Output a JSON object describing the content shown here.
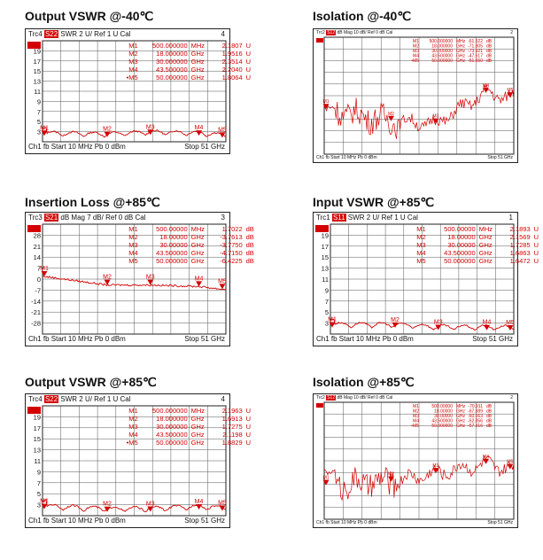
{
  "panels": [
    {
      "title": "Output VSWR @-40℃",
      "header": {
        "trace": "Trc4",
        "param": "S22",
        "rest": "SWR  2 U/  Ref 1 U    Cal",
        "chan": "4"
      },
      "footer": {
        "left": "Ch1  fb  Start  10 MHz     Pb   0 dBm",
        "right": "Stop  51 GHz"
      },
      "markers": [
        {
          "name": "M1",
          "freq": "500.000000",
          "unit": "MHz",
          "val": "2.1807",
          "vu": "U"
        },
        {
          "name": "M2",
          "freq": "18.000000",
          "unit": "GHz",
          "val": "1.9516",
          "vu": "U"
        },
        {
          "name": "M3",
          "freq": "30.000000",
          "unit": "GHz",
          "val": "2.3514",
          "vu": "U"
        },
        {
          "name": "M4",
          "freq": "43.500000",
          "unit": "GHz",
          "val": "2.2040",
          "vu": "U"
        },
        {
          "name": "•M5",
          "freq": "50.000000",
          "unit": "GHz",
          "val": "1.8064",
          "vu": "U"
        }
      ]
    },
    {
      "title": "Isolation @-40℃",
      "header": {
        "trace": "Trc2",
        "param": "S12",
        "rest": "dB Mag  10 dB/  Ref 0 dB     Cal",
        "chan": "2"
      },
      "footer": {
        "left": "Ch1  fb  Start  10 MHz            Pb   0 dBm",
        "right": "Stop  51 GHz"
      },
      "markers": [
        {
          "name": "M1",
          "freq": "500.000000",
          "unit": "MHz",
          "val": "-61.522",
          "vu": "dB"
        },
        {
          "name": "M2",
          "freq": "18.000000",
          "unit": "GHz",
          "val": "-71.805",
          "vu": "dB"
        },
        {
          "name": "M3",
          "freq": "30.000000",
          "unit": "GHz",
          "val": "-73.921",
          "vu": "dB"
        },
        {
          "name": "M4",
          "freq": "43.500000",
          "unit": "GHz",
          "val": "-47.617",
          "vu": "dB"
        },
        {
          "name": "•M5",
          "freq": "50.000000",
          "unit": "GHz",
          "val": "-51.650",
          "vu": "dB"
        }
      ]
    },
    {
      "title": "Insertion Loss @+85℃",
      "header": {
        "trace": "Trc3",
        "param": "S21",
        "rest": "dB Mag   7 dB/  Ref 0 dB     Cal",
        "chan": "3"
      },
      "footer": {
        "left": "Ch1  fb  Start  10 MHz     Pb   0 dBm",
        "right": "Stop  51 GHz"
      },
      "markers": [
        {
          "name": "M1",
          "freq": "500.00000",
          "unit": "MHz",
          "val": "1.7022",
          "vu": "dB"
        },
        {
          "name": "M2",
          "freq": "18.00000",
          "unit": "GHz",
          "val": "-3.7613",
          "vu": "dB"
        },
        {
          "name": "M3",
          "freq": "30.00000",
          "unit": "GHz",
          "val": "-3.7750",
          "vu": "dB"
        },
        {
          "name": "M4",
          "freq": "43.500000",
          "unit": "GHz",
          "val": "-4.7150",
          "vu": "dB"
        },
        {
          "name": "M5",
          "freq": "50.000000",
          "unit": "GHz",
          "val": "-6.4225",
          "vu": "dB"
        }
      ]
    },
    {
      "title": "Input VSWR @+85℃",
      "header": {
        "trace": "Trc1",
        "param": "S11",
        "rest": "SWR  2 U/  Ref 1 U     Cal",
        "chan": "1"
      },
      "footer": {
        "left": "Ch1  fb  Start  10 MHz     Pb   0 dBm",
        "right": "Stop  51 GHz"
      },
      "markers": [
        {
          "name": "M1",
          "freq": "500.00000",
          "unit": "MHz",
          "val": "2.1893",
          "vu": "U"
        },
        {
          "name": "M2",
          "freq": "18.00000",
          "unit": "GHz",
          "val": "2.1569",
          "vu": "U"
        },
        {
          "name": "M3",
          "freq": "30.00000",
          "unit": "GHz",
          "val": "1.7285",
          "vu": "U"
        },
        {
          "name": "M4",
          "freq": "43.500000",
          "unit": "GHz",
          "val": "1.6863",
          "vu": "U"
        },
        {
          "name": "M5",
          "freq": "50.000000",
          "unit": "GHz",
          "val": "1.6472",
          "vu": "U"
        }
      ]
    },
    {
      "title": "Output VSWR @+85℃",
      "header": {
        "trace": "Trc4",
        "param": "S22",
        "rest": "SWR  2 U/  Ref 1 U    Cal",
        "chan": "4"
      },
      "footer": {
        "left": "Ch1  fb  Start  10 MHz     Pb   0 dBm",
        "right": "Stop  51 GHz"
      },
      "markers": [
        {
          "name": "M1",
          "freq": "500.000000",
          "unit": "MHz",
          "val": "2.1963",
          "vu": "U"
        },
        {
          "name": "M2",
          "freq": "18.000000",
          "unit": "GHz",
          "val": "1.6913",
          "vu": "U"
        },
        {
          "name": "M3",
          "freq": "30.000000",
          "unit": "GHz",
          "val": "1.7275",
          "vu": "U"
        },
        {
          "name": "M4",
          "freq": "43.500000",
          "unit": "GHz",
          "val": "2.1198",
          "vu": "U"
        },
        {
          "name": "•M5",
          "freq": "50.000000",
          "unit": "GHz",
          "val": "1.8829",
          "vu": "U"
        }
      ]
    },
    {
      "title": "Isolation @+85℃",
      "header": {
        "trace": "Trc2",
        "param": "S12",
        "rest": "dB Mag  10 dB/  Ref 0 dB     Cal",
        "chan": "2"
      },
      "footer": {
        "left": "Ch1  fb  Start  10 MHz            Pb   0 dBm",
        "right": "Stop  51 GHz"
      },
      "markers": [
        {
          "name": "M1",
          "freq": "500.00000",
          "unit": "MHz",
          "val": "-70.911",
          "vu": "dB"
        },
        {
          "name": "M2",
          "freq": "18.00000",
          "unit": "GHz",
          "val": "-67.889",
          "vu": "dB"
        },
        {
          "name": "M3",
          "freq": "30.00000",
          "unit": "GHz",
          "val": "-60.663",
          "vu": "dB"
        },
        {
          "name": "M4",
          "freq": "43.500000",
          "unit": "GHz",
          "val": "-52.856",
          "vu": "dB"
        },
        {
          "name": "•M5",
          "freq": "50.000000",
          "unit": "GHz",
          "val": "-57.316",
          "vu": "dB"
        }
      ]
    }
  ],
  "chart_data": [
    {
      "type": "line",
      "title": "Output VSWR @-40℃",
      "ylim": [
        1,
        21
      ],
      "y_ticks": [
        3,
        5,
        7,
        9,
        11,
        13,
        15,
        17,
        19
      ],
      "xlim_ghz": [
        0.01,
        51
      ],
      "series": [
        {
          "x": [
            0.5,
            18,
            30,
            43.5,
            50
          ],
          "values": [
            2.1807,
            1.9516,
            2.3514,
            2.204,
            1.8064
          ]
        }
      ],
      "marker_labels": [
        "M1",
        "M2",
        "M3",
        "M4",
        "M5"
      ]
    },
    {
      "type": "line",
      "title": "Isolation @-40℃",
      "ylim": [
        -100,
        0
      ],
      "xlim_ghz": [
        0.01,
        51
      ],
      "series": [
        {
          "x": [
            0.5,
            18,
            30,
            43.5,
            50
          ],
          "values": [
            -61.522,
            -71.805,
            -73.921,
            -47.617,
            -51.65
          ]
        }
      ],
      "marker_labels": [
        "M1",
        "M2",
        "M3",
        "M4",
        "M5"
      ]
    },
    {
      "type": "line",
      "title": "Insertion Loss @+85℃",
      "ylim": [
        -35,
        35
      ],
      "y_ticks": [
        28,
        21,
        14,
        7,
        0,
        -7,
        -14,
        -21,
        -28
      ],
      "xlim_ghz": [
        0.01,
        51
      ],
      "series": [
        {
          "x": [
            0.5,
            18,
            30,
            43.5,
            50
          ],
          "values": [
            1.7022,
            -3.7613,
            -3.775,
            -4.715,
            -6.4225
          ]
        }
      ],
      "marker_labels": [
        "M1",
        "M2",
        "M3",
        "M4",
        "M5"
      ]
    },
    {
      "type": "line",
      "title": "Input VSWR @+85℃",
      "ylim": [
        1,
        21
      ],
      "y_ticks": [
        3,
        5,
        7,
        9,
        11,
        13,
        15,
        17,
        19
      ],
      "xlim_ghz": [
        0.01,
        51
      ],
      "series": [
        {
          "x": [
            0.5,
            18,
            30,
            43.5,
            50
          ],
          "values": [
            2.1893,
            2.1569,
            1.7285,
            1.6863,
            1.6472
          ]
        }
      ],
      "marker_labels": [
        "M1",
        "M2",
        "M3",
        "M4",
        "M5"
      ]
    },
    {
      "type": "line",
      "title": "Output VSWR @+85℃",
      "ylim": [
        1,
        21
      ],
      "y_ticks": [
        3,
        5,
        7,
        9,
        11,
        13,
        15,
        17,
        19
      ],
      "xlim_ghz": [
        0.01,
        51
      ],
      "series": [
        {
          "x": [
            0.5,
            18,
            30,
            43.5,
            50
          ],
          "values": [
            2.1963,
            1.6913,
            1.7275,
            2.1198,
            1.8829
          ]
        }
      ],
      "marker_labels": [
        "M1",
        "M2",
        "M3",
        "M4",
        "M5"
      ]
    },
    {
      "type": "line",
      "title": "Isolation @+85℃",
      "ylim": [
        -100,
        0
      ],
      "xlim_ghz": [
        0.01,
        51
      ],
      "series": [
        {
          "x": [
            0.5,
            18,
            30,
            43.5,
            50
          ],
          "values": [
            -70.911,
            -67.889,
            -60.663,
            -52.856,
            -57.316
          ]
        }
      ],
      "marker_labels": [
        "M1",
        "M2",
        "M3",
        "M4",
        "M5"
      ]
    }
  ]
}
